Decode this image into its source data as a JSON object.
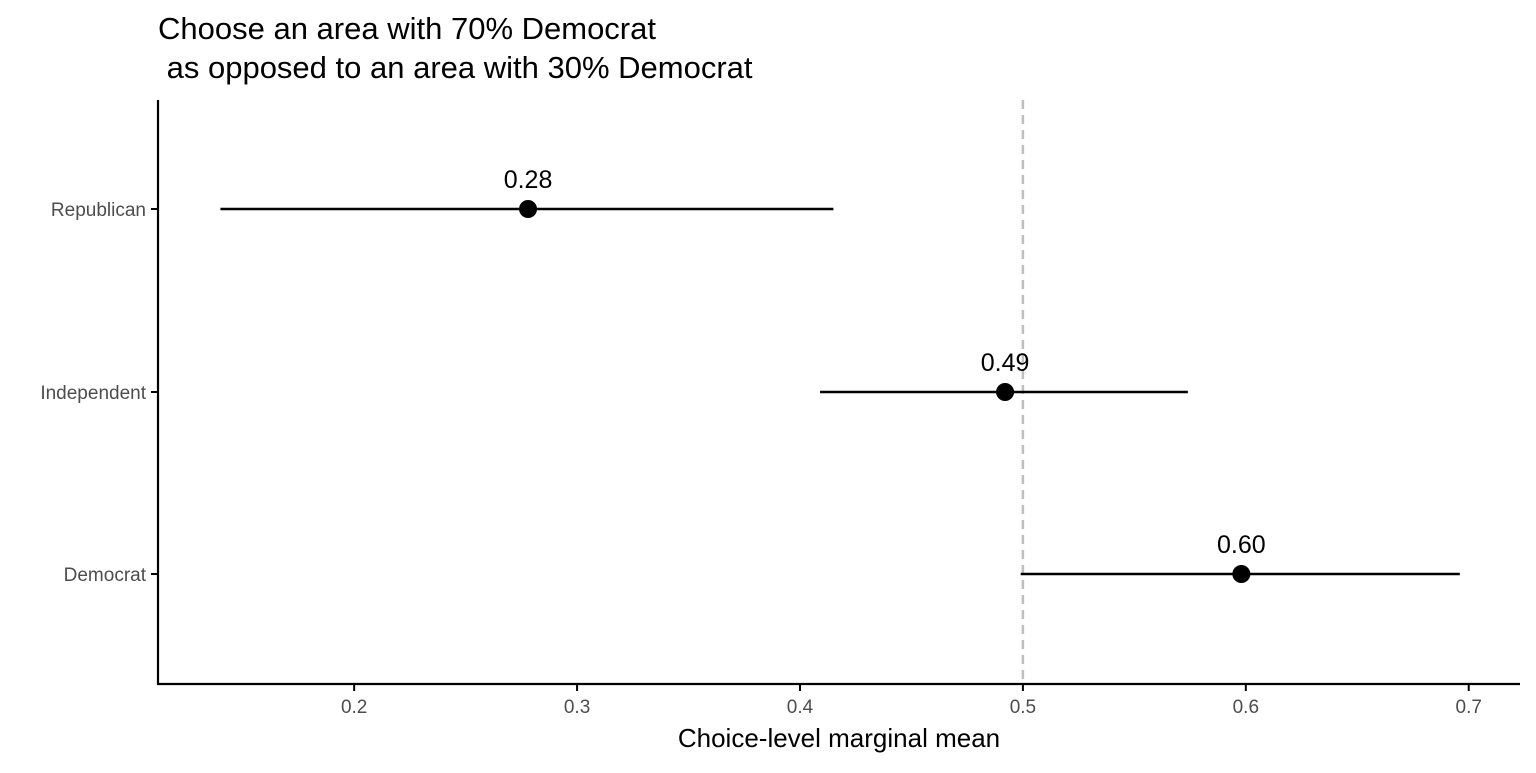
{
  "chart_data": {
    "type": "scatter",
    "title_lines": [
      "Choose an area with 70% Democrat",
      " as opposed to an area with 30% Democrat"
    ],
    "xlabel": "Choice-level marginal mean",
    "ylabel": "",
    "xlim": [
      0.112,
      0.723
    ],
    "x_ticks": [
      0.2,
      0.3,
      0.4,
      0.5,
      0.6,
      0.7
    ],
    "x_tick_labels": [
      "0.2",
      "0.3",
      "0.4",
      "0.5",
      "0.6",
      "0.7"
    ],
    "reference_line": {
      "x": 0.5,
      "style": "dashed",
      "color": "#bfbfbf"
    },
    "categories": [
      "Republican",
      "Independent",
      "Democrat"
    ],
    "points": [
      {
        "category": "Republican",
        "estimate": 0.278,
        "lower": 0.14,
        "upper": 0.415,
        "label": "0.28"
      },
      {
        "category": "Independent",
        "estimate": 0.492,
        "lower": 0.409,
        "upper": 0.574,
        "label": "0.49"
      },
      {
        "category": "Democrat",
        "estimate": 0.598,
        "lower": 0.499,
        "upper": 0.696,
        "label": "0.60"
      }
    ],
    "grid": false,
    "legend": "none",
    "colors": {
      "point": "#000000",
      "errorbar": "#000000",
      "axis": "#000000",
      "tick_text": "#4d4d4d"
    }
  }
}
